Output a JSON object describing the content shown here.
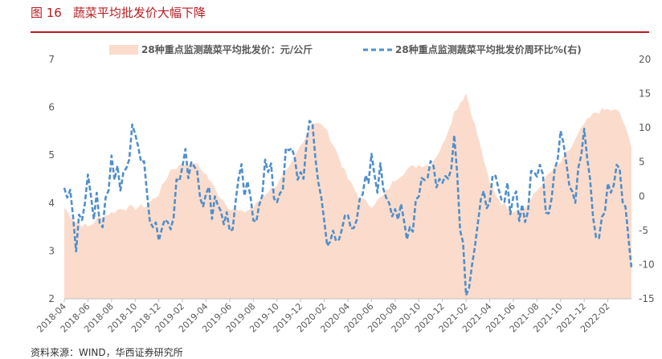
{
  "figure": {
    "number": "图 16",
    "title": "蔬菜平均批发价大幅下降",
    "source": "资料来源：WIND，华西证券研究所"
  },
  "colors": {
    "title_red": "#b81c22",
    "area_fill": "#fbdccc",
    "line_blue": "#4f8fcc",
    "axis_text": "#595959"
  },
  "chart_data": {
    "type": "area+line",
    "legend": [
      "28种重点监测蔬菜平均批发价：元/公斤",
      "28种重点监测蔬菜平均批发价周环比%(右)"
    ],
    "legend_position": "top",
    "grid": false,
    "x_ticks": [
      "2018-04",
      "2018-06",
      "2018-08",
      "2018-10",
      "2018-12",
      "2019-02",
      "2019-04",
      "2019-06",
      "2019-08",
      "2019-10",
      "2019-12",
      "2020-02",
      "2020-04",
      "2020-06",
      "2020-08",
      "2020-10",
      "2020-12",
      "2021-02",
      "2021-04",
      "2021-06",
      "2021-08",
      "2021-10",
      "2021-12",
      "2022-02"
    ],
    "y_left": {
      "min": 2,
      "max": 7,
      "ticks": [
        2,
        3,
        4,
        5,
        6,
        7
      ]
    },
    "y_right": {
      "min": -15,
      "max": 20,
      "ticks": [
        -15,
        -10,
        -5,
        0,
        5,
        10,
        15,
        20
      ]
    },
    "series": [
      {
        "name": "28种重点监测蔬菜平均批发价：元/公斤",
        "axis": "left",
        "type": "area",
        "monthly_x": [
          "2018-04",
          "2018-05",
          "2018-06",
          "2018-07",
          "2018-08",
          "2018-09",
          "2018-10",
          "2018-11",
          "2018-12",
          "2019-01",
          "2019-02",
          "2019-03",
          "2019-04",
          "2019-05",
          "2019-06",
          "2019-07",
          "2019-08",
          "2019-09",
          "2019-10",
          "2019-11",
          "2019-12",
          "2020-01",
          "2020-02",
          "2020-03",
          "2020-04",
          "2020-05",
          "2020-06",
          "2020-07",
          "2020-08",
          "2020-09",
          "2020-10",
          "2020-11",
          "2020-12",
          "2021-01",
          "2021-02",
          "2021-03",
          "2021-04",
          "2021-05",
          "2021-06",
          "2021-07",
          "2021-08",
          "2021-09",
          "2021-10",
          "2021-11",
          "2021-12",
          "2022-01",
          "2022-02",
          "2022-03",
          "2022-04"
        ],
        "values": [
          3.9,
          3.6,
          3.5,
          3.7,
          3.8,
          3.9,
          3.9,
          3.95,
          4.2,
          4.7,
          4.8,
          4.85,
          4.6,
          4.2,
          3.9,
          3.8,
          3.9,
          4.2,
          4.4,
          4.7,
          5.2,
          5.7,
          5.6,
          5.1,
          4.5,
          4.1,
          3.95,
          4.15,
          4.5,
          4.7,
          4.8,
          4.8,
          5.2,
          5.9,
          6.3,
          5.4,
          4.4,
          4.0,
          3.85,
          3.9,
          4.25,
          4.6,
          4.85,
          5.2,
          5.65,
          5.9,
          5.95,
          5.9,
          5.2
        ]
      },
      {
        "name": "28种重点监测蔬菜平均批发价周环比%(右)",
        "axis": "right",
        "type": "line",
        "style": "dashed",
        "x": [
          "2018-04",
          "2018-05",
          "2018-06",
          "2018-07",
          "2018-08",
          "2018-09",
          "2018-10",
          "2018-11",
          "2018-12",
          "2019-01",
          "2019-02",
          "2019-03",
          "2019-04",
          "2019-05",
          "2019-06",
          "2019-07",
          "2019-08",
          "2019-09",
          "2019-10",
          "2019-11",
          "2019-12",
          "2020-01",
          "2020-02",
          "2020-03",
          "2020-04",
          "2020-05",
          "2020-06",
          "2020-07",
          "2020-08",
          "2020-09",
          "2020-10",
          "2020-11",
          "2020-12",
          "2021-01",
          "2021-02",
          "2021-03",
          "2021-04",
          "2021-05",
          "2021-06",
          "2021-07",
          "2021-08",
          "2021-09",
          "2021-10",
          "2021-11",
          "2021-12",
          "2022-01",
          "2022-02",
          "2022-03",
          "2022-04"
        ],
        "values": [
          2,
          -6,
          3,
          -4,
          5,
          1,
          11,
          0,
          -5,
          -2,
          4,
          6,
          -1,
          0,
          -5,
          2,
          -3,
          4,
          0,
          6,
          3,
          10,
          -4,
          -8,
          -2,
          -3,
          4,
          2,
          -1,
          -7,
          2,
          5,
          1,
          9,
          -13,
          -5,
          2,
          -2,
          1,
          -3,
          5,
          -1,
          11,
          -2,
          12,
          -5,
          0,
          3,
          -9
        ]
      }
    ]
  }
}
